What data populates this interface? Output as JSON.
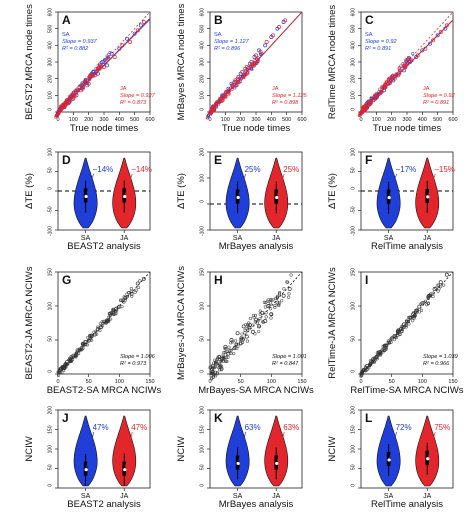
{
  "colors": {
    "sa": "#1f3fd8",
    "ja": "#e3262b",
    "frame": "#222222",
    "scatter": "#333333",
    "text": "#111111"
  },
  "chart_data": [
    {
      "letter": "A",
      "type": "scatter",
      "xlabel": "True node times",
      "ylabel": "BEAST2 MRCA node times",
      "xlim": [
        0,
        600
      ],
      "ylim": [
        0,
        600
      ],
      "xticks": [
        "0",
        "100",
        "200",
        "300",
        "400",
        "500",
        "600"
      ],
      "yticks": [
        "0",
        "100",
        "200",
        "300",
        "400",
        "500",
        "600"
      ],
      "identity_line": true,
      "annotations": {
        "sa": [
          "SA",
          "Slope = 0.937",
          "R² = 0.882"
        ],
        "ja": [
          "JA",
          "Slope = 0.927",
          "R² = 0.873"
        ]
      },
      "slopes": {
        "sa": 0.937,
        "ja": 0.927
      },
      "series": [
        {
          "name": "SA",
          "x": [
            20,
            35,
            50,
            60,
            75,
            90,
            100,
            120,
            140,
            160,
            180,
            200,
            230,
            260,
            290,
            320,
            350,
            400,
            450,
            500,
            540
          ],
          "y": [
            15,
            40,
            45,
            70,
            60,
            95,
            110,
            100,
            150,
            140,
            190,
            170,
            240,
            230,
            300,
            280,
            350,
            380,
            440,
            470,
            520
          ]
        },
        {
          "name": "JA",
          "x": [
            25,
            40,
            55,
            70,
            85,
            100,
            115,
            130,
            150,
            170,
            190,
            210,
            240,
            270,
            300,
            330,
            370,
            420,
            470,
            520,
            560
          ],
          "y": [
            20,
            30,
            60,
            55,
            90,
            80,
            120,
            130,
            130,
            170,
            160,
            210,
            220,
            260,
            270,
            320,
            330,
            400,
            420,
            490,
            540
          ]
        }
      ]
    },
    {
      "letter": "B",
      "type": "scatter",
      "xlabel": "True node times",
      "ylabel": "MrBayes MRCA node times",
      "xlim": [
        0,
        600
      ],
      "ylim": [
        0,
        600
      ],
      "xticks": [
        "0",
        "100",
        "200",
        "300",
        "400",
        "500",
        "600"
      ],
      "yticks": [
        "0",
        "100",
        "200",
        "300",
        "400",
        "500",
        "600"
      ],
      "identity_line": true,
      "annotations": {
        "sa": [
          "SA",
          "Slope = 1.127",
          "R² = 0.896"
        ],
        "ja": [
          "JA",
          "Slope = 1.125",
          "R² = 0.898"
        ]
      },
      "slopes": {
        "sa": 1.127,
        "ja": 1.125
      },
      "series": [
        {
          "name": "SA",
          "x": [
            20,
            40,
            60,
            80,
            100,
            120,
            140,
            160,
            180,
            200,
            230,
            260,
            290,
            320,
            360,
            400,
            440,
            480
          ],
          "y": [
            30,
            50,
            60,
            100,
            110,
            140,
            170,
            180,
            200,
            230,
            260,
            290,
            330,
            370,
            400,
            450,
            500,
            540
          ]
        },
        {
          "name": "JA",
          "x": [
            25,
            45,
            65,
            85,
            105,
            125,
            145,
            165,
            185,
            210,
            240,
            270,
            300,
            330,
            370,
            410,
            450,
            490
          ],
          "y": [
            25,
            55,
            70,
            90,
            120,
            130,
            160,
            190,
            210,
            240,
            270,
            300,
            340,
            360,
            420,
            460,
            510,
            550
          ]
        }
      ]
    },
    {
      "letter": "C",
      "type": "scatter",
      "xlabel": "True node times",
      "ylabel": "RelTime MRCA node times",
      "xlim": [
        0,
        600
      ],
      "ylim": [
        0,
        600
      ],
      "xticks": [
        "0",
        "100",
        "200",
        "300",
        "400",
        "500",
        "600"
      ],
      "yticks": [
        "0",
        "100",
        "200",
        "300",
        "400",
        "500",
        "600"
      ],
      "identity_line": true,
      "annotations": {
        "sa": [
          "SA",
          "Slope = 0.92",
          "R² = 0.891"
        ],
        "ja": [
          "JA",
          "Slope = 0.92",
          "R² = 0.891"
        ]
      },
      "slopes": {
        "sa": 0.92,
        "ja": 0.92
      },
      "series": [
        {
          "name": "SA",
          "x": [
            20,
            40,
            60,
            80,
            100,
            120,
            150,
            180,
            210,
            240,
            280,
            320,
            360,
            400,
            450,
            500,
            550
          ],
          "y": [
            20,
            30,
            60,
            70,
            90,
            110,
            130,
            170,
            190,
            220,
            250,
            300,
            330,
            370,
            410,
            460,
            500
          ]
        },
        {
          "name": "JA",
          "x": [
            25,
            45,
            65,
            85,
            105,
            130,
            160,
            190,
            220,
            250,
            290,
            330,
            370,
            420,
            470,
            520,
            560
          ],
          "y": [
            15,
            40,
            55,
            80,
            95,
            120,
            150,
            175,
            200,
            230,
            270,
            310,
            340,
            380,
            430,
            480,
            520
          ]
        }
      ]
    },
    {
      "letter": "D",
      "type": "violin",
      "xlabel": "BEAST2 analysis",
      "ylabel": "ΔTE (%)",
      "ylim": [
        -100,
        100
      ],
      "yticks": [
        "-100",
        "-50",
        "0",
        "50",
        "100"
      ],
      "dashed_zero": true,
      "groups": [
        {
          "name": "SA",
          "label_value": "−14%",
          "median": -14
        },
        {
          "name": "JA",
          "label_value": "−14%",
          "median": -14
        }
      ]
    },
    {
      "letter": "E",
      "type": "violin",
      "xlabel": "MrBayes analysis",
      "ylabel": "ΔTE (%)",
      "ylim": [
        -100,
        200
      ],
      "yticks": [
        "-100",
        "0",
        "100",
        "200"
      ],
      "dashed_zero": true,
      "groups": [
        {
          "name": "SA",
          "label_value": "25%",
          "median": 25
        },
        {
          "name": "JA",
          "label_value": "25%",
          "median": 25
        }
      ]
    },
    {
      "letter": "F",
      "type": "violin",
      "xlabel": "RelTime analysis",
      "ylabel": "ΔTE (%)",
      "ylim": [
        -100,
        100
      ],
      "yticks": [
        "-100",
        "-50",
        "0",
        "50",
        "100"
      ],
      "dashed_zero": true,
      "groups": [
        {
          "name": "SA",
          "label_value": "−17%",
          "median": -17
        },
        {
          "name": "JA",
          "label_value": "−15%",
          "median": -15
        }
      ]
    },
    {
      "letter": "G",
      "type": "scatter",
      "xlabel": "BEAST2-SA MRCA NCIWs",
      "ylabel": "BEAST2-JA MRCA NCIWs",
      "xlim": [
        0,
        150
      ],
      "ylim": [
        0,
        150
      ],
      "xticks": [
        "0",
        "50",
        "100",
        "150"
      ],
      "yticks": [
        "0",
        "50",
        "100",
        "150"
      ],
      "identity_line": true,
      "annotations": {
        "fit": [
          "Slope = 1.006",
          "R² = 0.973"
        ]
      },
      "slopes": {
        "fit": 1.006
      },
      "series": [
        {
          "name": "",
          "x": [
            5,
            10,
            15,
            20,
            25,
            30,
            35,
            40,
            45,
            50,
            55,
            60,
            65,
            70,
            75,
            80,
            85,
            90,
            95,
            100,
            110,
            120,
            130,
            140
          ],
          "y": [
            8,
            9,
            18,
            19,
            27,
            28,
            36,
            38,
            47,
            49,
            56,
            58,
            66,
            69,
            77,
            78,
            88,
            89,
            96,
            99,
            112,
            118,
            133,
            140
          ]
        }
      ]
    },
    {
      "letter": "H",
      "type": "scatter",
      "xlabel": "MrBayes-SA MRCA NCIWs",
      "ylabel": "MrBayes-JA MRCA NCIWs",
      "xlim": [
        0,
        150
      ],
      "ylim": [
        0,
        150
      ],
      "xticks": [
        "0",
        "50",
        "100",
        "150"
      ],
      "yticks": [
        "0",
        "50",
        "100",
        "150"
      ],
      "identity_line": true,
      "annotations": {
        "fit": [
          "Slope = 1.001",
          "R² = 0.847"
        ]
      },
      "slopes": {
        "fit": 1.001
      },
      "series": [
        {
          "name": "",
          "x": [
            5,
            10,
            15,
            20,
            25,
            30,
            35,
            40,
            45,
            50,
            55,
            60,
            65,
            70,
            75,
            80,
            85,
            90,
            95,
            100,
            110,
            120,
            130
          ],
          "y": [
            12,
            15,
            25,
            22,
            40,
            30,
            50,
            38,
            60,
            45,
            70,
            55,
            72,
            62,
            80,
            70,
            90,
            78,
            100,
            88,
            105,
            115,
            125
          ]
        }
      ]
    },
    {
      "letter": "I",
      "type": "scatter",
      "xlabel": "RelTime-SA MRCA NCIWs",
      "ylabel": "RelTime-JA MRCA NCIWs",
      "xlim": [
        0,
        150
      ],
      "ylim": [
        0,
        150
      ],
      "xticks": [
        "0",
        "50",
        "100",
        "150"
      ],
      "yticks": [
        "0",
        "50",
        "100",
        "150"
      ],
      "identity_line": true,
      "annotations": {
        "fit": [
          "Slope = 1.039",
          "R² = 0.966"
        ]
      },
      "slopes": {
        "fit": 1.039
      },
      "series": [
        {
          "name": "",
          "x": [
            5,
            10,
            15,
            20,
            25,
            30,
            35,
            40,
            45,
            50,
            55,
            60,
            65,
            70,
            75,
            80,
            85,
            90,
            95,
            100,
            110,
            120,
            130,
            140
          ],
          "y": [
            6,
            12,
            14,
            22,
            25,
            32,
            35,
            42,
            46,
            52,
            56,
            63,
            66,
            73,
            77,
            83,
            88,
            93,
            99,
            104,
            114,
            125,
            135,
            146
          ]
        }
      ]
    },
    {
      "letter": "J",
      "type": "violin",
      "xlabel": "BEAST2 analysis",
      "ylabel": "NCIW",
      "ylim": [
        0,
        200
      ],
      "yticks": [
        "0",
        "50",
        "100",
        "150",
        "200"
      ],
      "dashed_zero": false,
      "groups": [
        {
          "name": "SA",
          "label_value": "47%",
          "median": 47
        },
        {
          "name": "JA",
          "label_value": "47%",
          "median": 47
        }
      ]
    },
    {
      "letter": "K",
      "type": "violin",
      "xlabel": "MrBayes analysis",
      "ylabel": "NCIW",
      "ylim": [
        0,
        200
      ],
      "yticks": [
        "0",
        "50",
        "100",
        "150",
        "200"
      ],
      "dashed_zero": false,
      "groups": [
        {
          "name": "SA",
          "label_value": "63%",
          "median": 63
        },
        {
          "name": "JA",
          "label_value": "63%",
          "median": 63
        }
      ]
    },
    {
      "letter": "L",
      "type": "violin",
      "xlabel": "RelTime analysis",
      "ylabel": "NCIW",
      "ylim": [
        0,
        200
      ],
      "yticks": [
        "0",
        "50",
        "100",
        "150",
        "200"
      ],
      "dashed_zero": false,
      "groups": [
        {
          "name": "SA",
          "label_value": "72%",
          "median": 72
        },
        {
          "name": "JA",
          "label_value": "75%",
          "median": 75
        }
      ]
    }
  ]
}
